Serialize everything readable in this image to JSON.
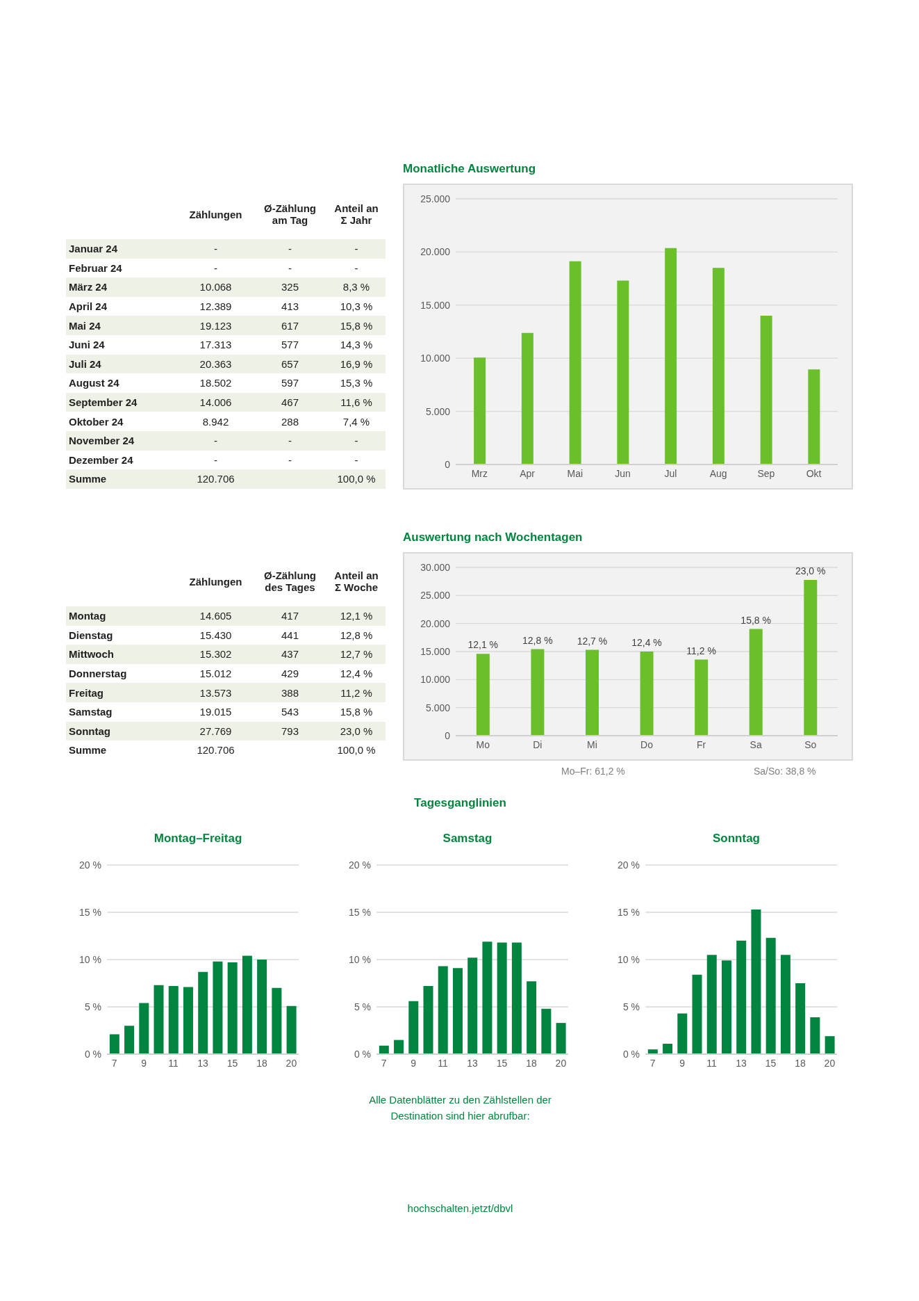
{
  "chart_data": [
    {
      "type": "other",
      "categories": [
        null,
        "Zählungen",
        "Ø-Zählung am Tag",
        "Anteil an Σ Jahr"
      ],
      "y_categories": [
        "Januar 24",
        "Februar 24",
        "März 24",
        "April 24",
        "Mai 24",
        "Juni 24",
        "Juli 24",
        "August 24",
        "September 24",
        "Oktober 24",
        "November 24",
        "Dezember 24",
        "Summe"
      ],
      "cell_labels": [
        [
          "-",
          "-",
          "-"
        ],
        [
          "-",
          "-",
          "-"
        ],
        [
          "10.068",
          "325",
          "8,3 %"
        ],
        [
          "12.389",
          "413",
          "10,3 %"
        ],
        [
          "19.123",
          "617",
          "15,8 %"
        ],
        [
          "17.313",
          "577",
          "14,3 %"
        ],
        [
          "20.363",
          "657",
          "16,9 %"
        ],
        [
          "18.502",
          "597",
          "15,3 %"
        ],
        [
          "14.006",
          "467",
          "11,6 %"
        ],
        [
          "8.942",
          "288",
          "7,4 %"
        ],
        [
          "-",
          "-",
          "-"
        ],
        [
          "-",
          "-",
          "-"
        ],
        [
          "120.706",
          null,
          "100,0 %"
        ]
      ]
    },
    {
      "type": "bar",
      "title": "Monatliche Auswertung",
      "categories": [
        "Mrz",
        "Apr",
        "Mai",
        "Jun",
        "Jul",
        "Aug",
        "Sep",
        "Okt"
      ],
      "values": [
        10068,
        12389,
        19123,
        17313,
        20363,
        18502,
        14006,
        8942
      ],
      "color": "#6abf2b",
      "ylim": [
        0,
        25000
      ],
      "yticks": [
        0,
        {
          "value": 5000,
          "label": "5.000"
        },
        {
          "value": 10000,
          "label": "10.000"
        },
        {
          "value": 15000,
          "label": "15.000"
        },
        {
          "value": 20000,
          "label": "20.000"
        },
        {
          "value": 25000,
          "label": "25.000"
        }
      ],
      "grid": "y"
    },
    {
      "type": "other",
      "categories": [
        null,
        "Zählungen",
        "Ø-Zählung des Tages",
        "Anteil an Σ Woche"
      ],
      "y_categories": [
        "Montag",
        "Dienstag",
        "Mittwoch",
        "Donnerstag",
        "Freitag",
        "Samstag",
        "Sonntag",
        "Summe"
      ],
      "cell_labels": [
        [
          "14.605",
          "417",
          "12,1 %"
        ],
        [
          "15.430",
          "441",
          "12,8 %"
        ],
        [
          "15.302",
          "437",
          "12,7 %"
        ],
        [
          "15.012",
          "429",
          "12,4 %"
        ],
        [
          "13.573",
          "388",
          "11,2 %"
        ],
        [
          "19.015",
          "543",
          "15,8 %"
        ],
        [
          "27.769",
          "793",
          "23,0 %"
        ],
        [
          "120.706",
          null,
          "100,0 %"
        ]
      ]
    },
    {
      "type": "bar",
      "title": "Auswertung nach Wochentagen",
      "categories": [
        "Mo",
        "Di",
        "Mi",
        "Do",
        "Fr",
        "Sa",
        "So"
      ],
      "values": [
        14605,
        15430,
        15302,
        15012,
        13573,
        19015,
        27769
      ],
      "color": "#6abf2b",
      "ylim": [
        0,
        30000
      ],
      "yticks": [
        0,
        {
          "value": 5000,
          "label": "5.000"
        },
        {
          "value": 10000,
          "label": "10.000"
        },
        {
          "value": 15000,
          "label": "15.000"
        },
        {
          "value": 20000,
          "label": "20.000"
        },
        {
          "value": 25000,
          "label": "25.000"
        },
        {
          "value": 30000,
          "label": "30.000"
        }
      ],
      "grid": "y",
      "annotations": [
        {
          "text": "12,1 %",
          "x": "Mo",
          "y": 14605
        },
        {
          "text": "12,8 %",
          "x": "Di",
          "y": 15430
        },
        {
          "text": "12,7 %",
          "x": "Mi",
          "y": 15302
        },
        {
          "text": "12,4 %",
          "x": "Do",
          "y": 15012
        },
        {
          "text": "11,2 %",
          "x": "Fr",
          "y": 13573
        },
        {
          "text": "15,8 %",
          "x": "Sa",
          "y": 19015
        },
        {
          "text": "23,0 %",
          "x": "So",
          "y": 27769
        },
        "Mo–Fr: 61,2 %",
        "Sa/So: 38,8 %"
      ]
    },
    {
      "type": "other",
      "title": "Tagesganglinien"
    },
    {
      "type": "bar",
      "title": "Montag–Freitag",
      "categories": [
        "7",
        null,
        "9",
        null,
        "11",
        null,
        "13",
        null,
        "15",
        null,
        "18",
        null,
        "20"
      ],
      "values": [
        2.1,
        3.0,
        5.4,
        7.3,
        7.2,
        7.1,
        8.7,
        9.8,
        9.7,
        10.4,
        10.0,
        7.0,
        5.1
      ],
      "color": "#00843f",
      "ylim": [
        0,
        20
      ],
      "yticks": [
        {
          "value": 0,
          "label": "0 %"
        },
        {
          "value": 5,
          "label": "5 %"
        },
        {
          "value": 10,
          "label": "10 %"
        },
        {
          "value": 15,
          "label": "15 %"
        },
        {
          "value": 20,
          "label": "20 %"
        }
      ],
      "grid": "y"
    },
    {
      "type": "bar",
      "title": "Samstag",
      "categories": [
        "7",
        null,
        "9",
        null,
        "11",
        null,
        "13",
        null,
        "15",
        null,
        "18",
        null,
        "20"
      ],
      "values": [
        0.9,
        1.5,
        5.6,
        7.2,
        9.3,
        9.1,
        10.2,
        11.9,
        11.8,
        11.8,
        7.7,
        4.8,
        3.3
      ],
      "color": "#00843f",
      "ylim": [
        0,
        20
      ],
      "yticks": [
        {
          "value": 0,
          "label": "0 %"
        },
        {
          "value": 5,
          "label": "5 %"
        },
        {
          "value": 10,
          "label": "10 %"
        },
        {
          "value": 15,
          "label": "15 %"
        },
        {
          "value": 20,
          "label": "20 %"
        }
      ],
      "grid": "y"
    },
    {
      "type": "bar",
      "title": "Sonntag",
      "categories": [
        "7",
        null,
        "9",
        null,
        "11",
        null,
        "13",
        null,
        "15",
        null,
        "18",
        null,
        "20"
      ],
      "values": [
        0.5,
        1.1,
        4.3,
        8.4,
        10.5,
        9.9,
        12.0,
        15.3,
        12.3,
        10.5,
        7.5,
        3.9,
        1.9
      ],
      "color": "#00843f",
      "ylim": [
        0,
        20
      ],
      "yticks": [
        {
          "value": 0,
          "label": "0 %"
        },
        {
          "value": 5,
          "label": "5 %"
        },
        {
          "value": 10,
          "label": "10 %"
        },
        {
          "value": 15,
          "label": "15 %"
        },
        {
          "value": 20,
          "label": "20 %"
        }
      ],
      "grid": "y"
    },
    {
      "type": "other",
      "annotations": [
        "Alle Datenblätter zu den Zählstellen der Destination sind hier abrufbar:",
        "hochschalten.jetzt/dbvl"
      ]
    }
  ]
}
